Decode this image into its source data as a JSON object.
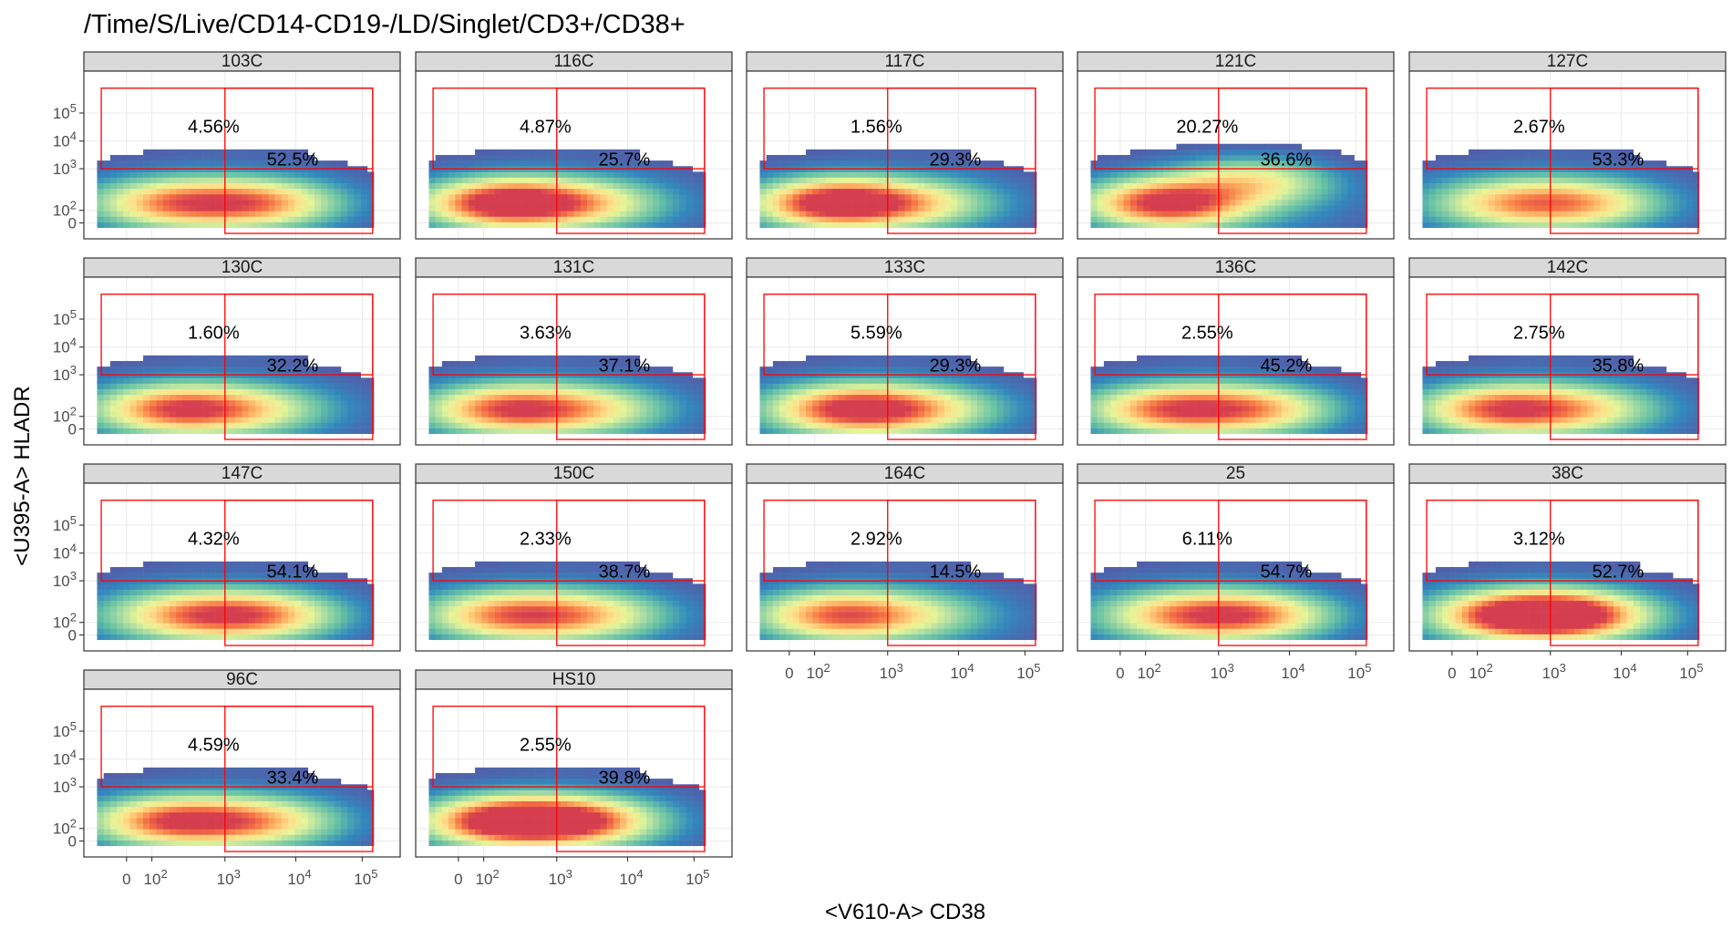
{
  "chart_data": {
    "type": "heatmap",
    "title": "/Time/S/Live/CD14-CD19-/LD/Singlet/CD3+/CD38+",
    "xlabel": "<V610-A> CD38",
    "ylabel": "<U395-A> HLADR",
    "x_ticks": [
      "0",
      "10",
      "10",
      "10",
      "10"
    ],
    "x_tick_exponents": [
      "",
      "2",
      "3",
      "4",
      "5"
    ],
    "x_tick_values": [
      0,
      100,
      1000,
      10000,
      100000
    ],
    "y_ticks": [
      "0",
      "10",
      "10",
      "10",
      "10"
    ],
    "y_tick_exponents": [
      "",
      "2",
      "3",
      "4",
      "5"
    ],
    "y_tick_values": [
      0,
      100,
      1000,
      10000,
      100000
    ],
    "scale": "biexponential",
    "grid": true,
    "colormap": [
      "#5e4fa2",
      "#3288bd",
      "#66c2a5",
      "#abdda4",
      "#e6f598",
      "#fee08b",
      "#fdae61",
      "#f46d43",
      "#d53e4f"
    ],
    "gate_color": "#ff0000",
    "panels": [
      {
        "name": "103C",
        "gate_upper_pct": "4.56%",
        "gate_right_pct": "52.5%",
        "peaks": [
          [
            200,
            150,
            0.6
          ],
          [
            3000,
            150,
            0.6
          ]
        ]
      },
      {
        "name": "116C",
        "gate_upper_pct": "4.87%",
        "gate_right_pct": "25.7%",
        "peaks": [
          [
            200,
            150,
            1.0
          ],
          [
            2500,
            150,
            0.4
          ]
        ]
      },
      {
        "name": "117C",
        "gate_upper_pct": "1.56%",
        "gate_right_pct": "29.3%",
        "peaks": [
          [
            200,
            150,
            1.0
          ],
          [
            2500,
            150,
            0.35
          ]
        ]
      },
      {
        "name": "121C",
        "gate_upper_pct": "20.27%",
        "gate_right_pct": "36.6%",
        "peaks": [
          [
            200,
            150,
            0.9
          ],
          [
            3000,
            500,
            0.45
          ]
        ]
      },
      {
        "name": "127C",
        "gate_upper_pct": "2.67%",
        "gate_right_pct": "53.3%",
        "peaks": [
          [
            300,
            150,
            0.45
          ],
          [
            3000,
            150,
            0.45
          ]
        ]
      },
      {
        "name": "130C",
        "gate_upper_pct": "1.60%",
        "gate_right_pct": "32.2%",
        "peaks": [
          [
            200,
            150,
            0.7
          ],
          [
            2000,
            150,
            0.35
          ]
        ]
      },
      {
        "name": "131C",
        "gate_upper_pct": "3.63%",
        "gate_right_pct": "37.1%",
        "peaks": [
          [
            200,
            150,
            0.7
          ],
          [
            2500,
            150,
            0.4
          ]
        ]
      },
      {
        "name": "133C",
        "gate_upper_pct": "5.59%",
        "gate_right_pct": "29.3%",
        "peaks": [
          [
            300,
            150,
            0.8
          ],
          [
            3000,
            150,
            0.4
          ]
        ]
      },
      {
        "name": "136C",
        "gate_upper_pct": "2.55%",
        "gate_right_pct": "45.2%",
        "peaks": [
          [
            200,
            150,
            0.65
          ],
          [
            3000,
            150,
            0.55
          ]
        ]
      },
      {
        "name": "142C",
        "gate_upper_pct": "2.75%",
        "gate_right_pct": "35.8%",
        "peaks": [
          [
            200,
            150,
            0.7
          ],
          [
            2500,
            150,
            0.4
          ]
        ]
      },
      {
        "name": "147C",
        "gate_upper_pct": "4.32%",
        "gate_right_pct": "54.1%",
        "peaks": [
          [
            300,
            150,
            0.5
          ],
          [
            3000,
            150,
            0.6
          ]
        ]
      },
      {
        "name": "150C",
        "gate_upper_pct": "2.33%",
        "gate_right_pct": "38.7%",
        "peaks": [
          [
            200,
            150,
            0.6
          ],
          [
            2500,
            150,
            0.45
          ]
        ]
      },
      {
        "name": "164C",
        "gate_upper_pct": "2.92%",
        "gate_right_pct": "14.5%",
        "peaks": [
          [
            200,
            150,
            0.65
          ],
          [
            2000,
            150,
            0.25
          ]
        ]
      },
      {
        "name": "25",
        "gate_upper_pct": "6.11%",
        "gate_right_pct": "54.7%",
        "peaks": [
          [
            300,
            150,
            0.5
          ],
          [
            3000,
            150,
            0.6
          ]
        ]
      },
      {
        "name": "38C",
        "gate_upper_pct": "3.12%",
        "gate_right_pct": "52.7%",
        "peaks": [
          [
            300,
            150,
            0.8
          ],
          [
            2000,
            150,
            0.85
          ]
        ]
      },
      {
        "name": "96C",
        "gate_upper_pct": "4.59%",
        "gate_right_pct": "33.4%",
        "peaks": [
          [
            200,
            150,
            0.75
          ],
          [
            3000,
            150,
            0.5
          ]
        ]
      },
      {
        "name": "HS10",
        "gate_upper_pct": "2.55%",
        "gate_right_pct": "39.8%",
        "peaks": [
          [
            200,
            150,
            1.0
          ],
          [
            2000,
            150,
            0.75
          ]
        ]
      }
    ]
  }
}
